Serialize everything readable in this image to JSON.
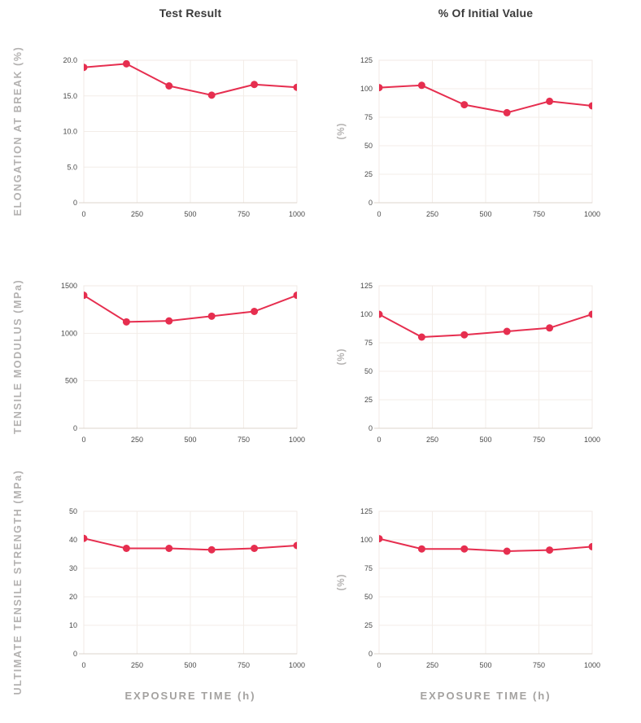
{
  "header": {
    "col1_title": "Test Result",
    "col2_title": "% Of Initial Value"
  },
  "row_labels": [
    "ELONGATION AT BREAK (%)",
    "TENSILE MODULUS (MPa)",
    "ULTIMATE TENSILE STRENGTH (MPa)"
  ],
  "pct_axis_label": "(%)",
  "x_axis_label": "EXPOSURE TIME (h)",
  "colors": {
    "line": "#E62E4F",
    "grid": "#F3EDE8",
    "border": "#F0E9E4",
    "axis": "#DCD5CE",
    "tick_text": "#4A4A4A",
    "row_label_text": "#B3B1B0",
    "title_text": "#3A3A3A",
    "x_axis_label_text": "#A4A2A0"
  },
  "chart_data": [
    {
      "name": "elongation-test-result",
      "type": "line",
      "title": "Test Result",
      "ylabel": "ELONGATION AT BREAK (%)",
      "xlabel": "EXPOSURE TIME (h)",
      "x": [
        0,
        200,
        400,
        600,
        800,
        1000
      ],
      "y": [
        19.0,
        19.5,
        16.4,
        15.1,
        16.6,
        16.2
      ],
      "xlim": [
        0,
        1000
      ],
      "ylim": [
        0,
        20
      ],
      "ytick_values": [
        0,
        5,
        10,
        15,
        20
      ],
      "ytick_labels": [
        "0",
        "5.0",
        "10.0",
        "15.0",
        "20.0"
      ],
      "xticks": [
        0,
        250,
        500,
        750,
        1000
      ],
      "xtick_labels": [
        "0",
        "250",
        "500",
        "750",
        "1000"
      ]
    },
    {
      "name": "elongation-pct-of-initial",
      "type": "line",
      "title": "% Of Initial Value",
      "ylabel": "(%)",
      "xlabel": "EXPOSURE TIME (h)",
      "x": [
        0,
        200,
        400,
        600,
        800,
        1000
      ],
      "y": [
        101,
        103,
        86,
        79,
        89,
        85
      ],
      "xlim": [
        0,
        1000
      ],
      "ylim": [
        0,
        125
      ],
      "ytick_values": [
        0,
        25,
        50,
        75,
        100,
        125
      ],
      "ytick_labels": [
        "0",
        "25",
        "50",
        "75",
        "100",
        "125"
      ],
      "xticks": [
        0,
        250,
        500,
        750,
        1000
      ],
      "xtick_labels": [
        "0",
        "250",
        "500",
        "750",
        "1000"
      ]
    },
    {
      "name": "tensile-modulus-test-result",
      "type": "line",
      "title": "Test Result",
      "ylabel": "TENSILE MODULUS (MPa)",
      "xlabel": "EXPOSURE TIME (h)",
      "x": [
        0,
        200,
        400,
        600,
        800,
        1000
      ],
      "y": [
        1400,
        1120,
        1130,
        1180,
        1230,
        1400
      ],
      "xlim": [
        0,
        1000
      ],
      "ylim": [
        0,
        1500
      ],
      "ytick_values": [
        0,
        500,
        1000,
        1500
      ],
      "ytick_labels": [
        "0",
        "500",
        "1000",
        "1500"
      ],
      "xticks": [
        0,
        250,
        500,
        750,
        1000
      ],
      "xtick_labels": [
        "0",
        "250",
        "500",
        "750",
        "1000"
      ]
    },
    {
      "name": "tensile-modulus-pct-of-initial",
      "type": "line",
      "title": "% Of Initial Value",
      "ylabel": "(%)",
      "xlabel": "EXPOSURE TIME (h)",
      "x": [
        0,
        200,
        400,
        600,
        800,
        1000
      ],
      "y": [
        100,
        80,
        82,
        85,
        88,
        100
      ],
      "xlim": [
        0,
        1000
      ],
      "ylim": [
        0,
        125
      ],
      "ytick_values": [
        0,
        25,
        50,
        75,
        100,
        125
      ],
      "ytick_labels": [
        "0",
        "25",
        "50",
        "75",
        "100",
        "125"
      ],
      "xticks": [
        0,
        250,
        500,
        750,
        1000
      ],
      "xtick_labels": [
        "0",
        "250",
        "500",
        "750",
        "1000"
      ]
    },
    {
      "name": "ultimate-tensile-strength-test-result",
      "type": "line",
      "title": "Test Result",
      "ylabel": "ULTIMATE TENSILE STRENGTH (MPa)",
      "xlabel": "EXPOSURE TIME (h)",
      "x": [
        0,
        200,
        400,
        600,
        800,
        1000
      ],
      "y": [
        40.5,
        37,
        37,
        36.5,
        37,
        38
      ],
      "xlim": [
        0,
        1000
      ],
      "ylim": [
        0,
        50
      ],
      "ytick_values": [
        0,
        10,
        20,
        30,
        40,
        50
      ],
      "ytick_labels": [
        "0",
        "10",
        "20",
        "30",
        "40",
        "50"
      ],
      "xticks": [
        0,
        250,
        500,
        750,
        1000
      ],
      "xtick_labels": [
        "0",
        "250",
        "500",
        "750",
        "1000"
      ]
    },
    {
      "name": "ultimate-tensile-strength-pct-of-initial",
      "type": "line",
      "title": "% Of Initial Value",
      "ylabel": "(%)",
      "xlabel": "EXPOSURE TIME (h)",
      "x": [
        0,
        200,
        400,
        600,
        800,
        1000
      ],
      "y": [
        101,
        92,
        92,
        90,
        91,
        94
      ],
      "xlim": [
        0,
        1000
      ],
      "ylim": [
        0,
        125
      ],
      "ytick_values": [
        0,
        25,
        50,
        75,
        100,
        125
      ],
      "ytick_labels": [
        "0",
        "25",
        "50",
        "75",
        "100",
        "125"
      ],
      "xticks": [
        0,
        250,
        500,
        750,
        1000
      ],
      "xtick_labels": [
        "0",
        "250",
        "500",
        "750",
        "1000"
      ]
    }
  ]
}
